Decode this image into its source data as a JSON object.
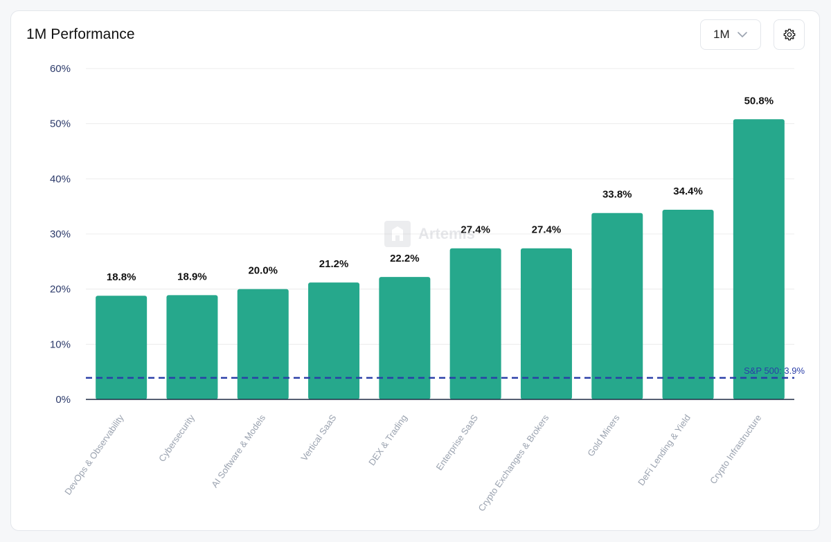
{
  "header": {
    "title": "1M Performance",
    "period_value": "1M",
    "settings_icon": "gear-icon",
    "chevron_icon": "chevron-down-icon"
  },
  "watermark": {
    "text": "Artemis"
  },
  "colors": {
    "bar": "#26a88c",
    "baseline": "#1f2a44",
    "reference_line": "#2a3ea8",
    "grid": "#ececec",
    "tick_label": "#2c3a6a",
    "category_label": "#9aa2af",
    "value_label": "#111111"
  },
  "chart_data": {
    "type": "bar",
    "title": "1M Performance",
    "categories": [
      "DevOps & Observability",
      "Cybersecurity",
      "AI Software & Models",
      "Vertical SaaS",
      "DEX & Trading",
      "Enterprise SaaS",
      "Crypto Exchanges & Brokers",
      "Gold Miners",
      "DeFi Lending & Yield",
      "Crypto Infrastructure"
    ],
    "values": [
      18.8,
      18.9,
      20.0,
      21.2,
      22.2,
      27.4,
      27.4,
      33.8,
      34.4,
      50.8
    ],
    "value_labels": [
      "18.8%",
      "18.9%",
      "20.0%",
      "21.2%",
      "22.2%",
      "27.4%",
      "27.4%",
      "33.8%",
      "34.4%",
      "50.8%"
    ],
    "ylim": [
      0,
      60
    ],
    "yticks": [
      0,
      10,
      20,
      30,
      40,
      50,
      60
    ],
    "ytick_labels": [
      "0%",
      "10%",
      "20%",
      "30%",
      "40%",
      "50%",
      "60%"
    ],
    "grid": true,
    "reference_line": {
      "value": 3.9,
      "label": "S&P 500: 3.9%"
    }
  }
}
